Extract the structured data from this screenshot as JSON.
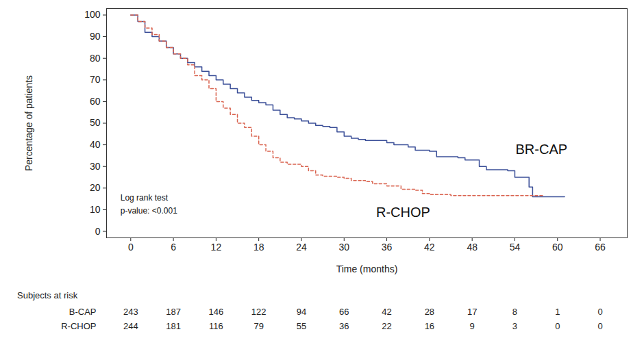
{
  "chart_data": {
    "type": "step",
    "x_label": "Time (months)",
    "y_label": "Percentage of patients",
    "xlim": [
      -3.4,
      69.8
    ],
    "xticks": [
      0,
      6,
      12,
      18,
      24,
      30,
      36,
      42,
      48,
      54,
      60,
      66
    ],
    "ylim": [
      -3,
      103
    ],
    "yticks": [
      0,
      10,
      20,
      30,
      40,
      50,
      60,
      70,
      80,
      90,
      100
    ],
    "grid": false,
    "series": [
      {
        "name": "BR-CAP",
        "color": "#3b4f98",
        "line_style": "solid",
        "label_at": [
          54.1,
          37.8
        ],
        "x": [
          0,
          1,
          2,
          3,
          4,
          5,
          6,
          7,
          8,
          9,
          10,
          11,
          12,
          13,
          14,
          15,
          16,
          17,
          18,
          19,
          20,
          21,
          22,
          23,
          24,
          25,
          26,
          27,
          28,
          29,
          30,
          31,
          32,
          33,
          36,
          37,
          39,
          40,
          42,
          43,
          46,
          47,
          49,
          50,
          53,
          54,
          56,
          56.5,
          61
        ],
        "values": [
          100,
          97,
          92,
          90,
          88,
          85,
          82,
          80,
          78,
          76,
          74,
          72,
          70,
          68,
          66,
          64,
          62,
          60.5,
          59.5,
          58.5,
          56,
          54,
          52.5,
          52,
          51,
          50,
          49,
          48.5,
          48,
          46,
          44,
          43,
          42.5,
          42,
          41,
          40,
          39,
          37.5,
          37,
          34.5,
          34,
          33,
          30,
          28.5,
          28,
          25,
          20.5,
          16,
          16
        ]
      },
      {
        "name": "R-CHOP",
        "color": "#d9634f",
        "line_style": "dashed",
        "label_at": [
          34.5,
          8.6
        ],
        "x": [
          0,
          1,
          2,
          3,
          4,
          5,
          6,
          7,
          8,
          9,
          10,
          11,
          12,
          13,
          14,
          15,
          16,
          17,
          18,
          19,
          20,
          21,
          22,
          24,
          25,
          26,
          27,
          29,
          30,
          31,
          33,
          34,
          36,
          38,
          40,
          41,
          42,
          45,
          58
        ],
        "values": [
          100,
          97,
          94,
          91,
          88,
          85,
          82,
          80,
          77,
          72,
          70,
          66,
          60,
          57,
          54,
          50,
          48,
          44,
          40,
          37,
          34,
          32,
          31,
          30,
          28,
          26,
          25.5,
          25,
          24.5,
          23.5,
          23,
          22,
          21,
          19.5,
          19,
          17.5,
          17,
          16.5,
          16.5
        ]
      }
    ],
    "annotations": [
      {
        "text": "Log rank test",
        "x": -1.45,
        "y": 15.6
      },
      {
        "text": "p-value: <0.001",
        "x": -1.45,
        "y": 9.5
      }
    ],
    "at_risk": {
      "title": "Subjects at risk",
      "times": [
        0,
        6,
        12,
        18,
        24,
        30,
        36,
        42,
        48,
        54,
        60,
        66
      ],
      "rows": [
        {
          "name": "B-CAP",
          "values": [
            243,
            187,
            146,
            122,
            94,
            66,
            42,
            28,
            17,
            8,
            1,
            0
          ]
        },
        {
          "name": "R-CHOP",
          "values": [
            244,
            181,
            116,
            79,
            55,
            36,
            22,
            16,
            9,
            3,
            0,
            0
          ]
        }
      ]
    }
  }
}
